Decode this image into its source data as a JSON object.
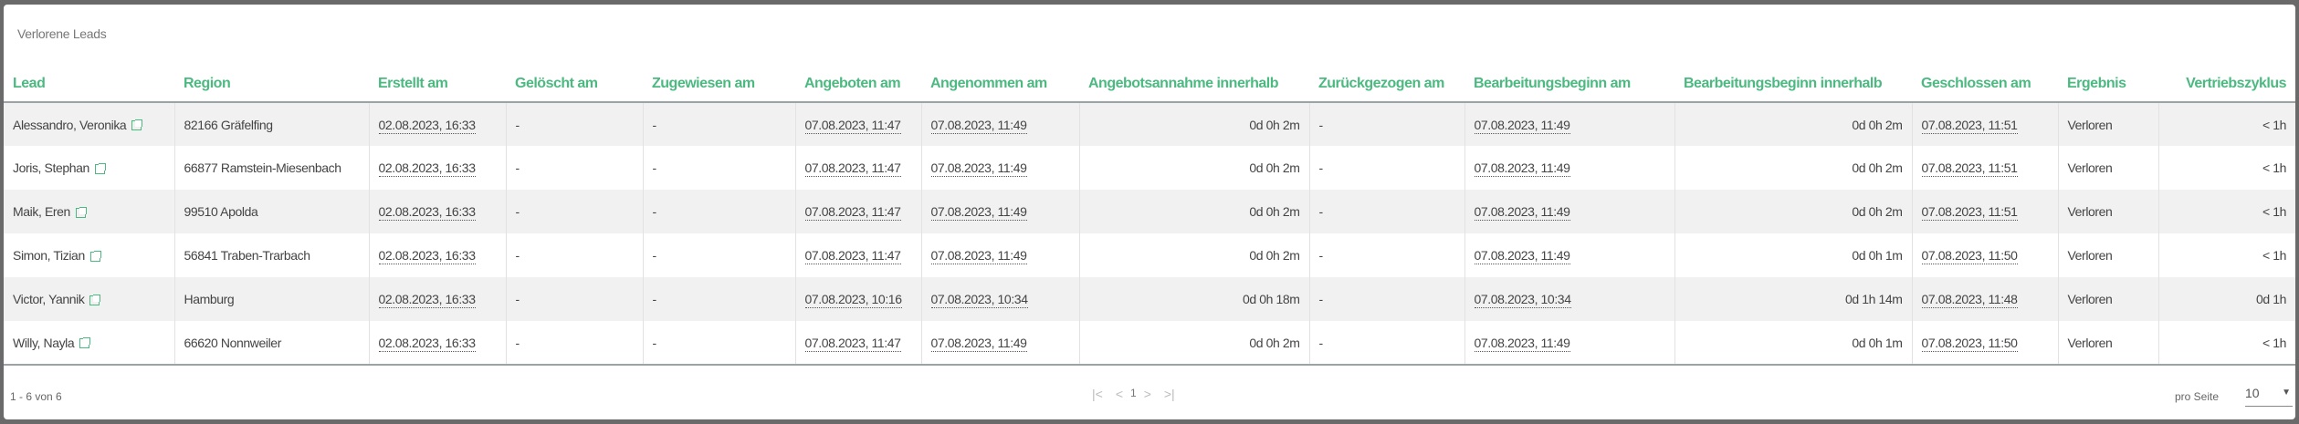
{
  "title": "Verlorene Leads",
  "columns": [
    "Lead",
    "Region",
    "Erstellt am",
    "Gelöscht am",
    "Zugewiesen am",
    "Angeboten am",
    "Angenommen am",
    "Angebotsannahme innerhalb",
    "Zurückgezogen am",
    "Bearbeitungsbeginn am",
    "Bearbeitungsbeginn innerhalb",
    "Geschlossen am",
    "Ergebnis",
    "Vertriebszyklus"
  ],
  "rows": [
    [
      "Alessandro, Veronika",
      "82166 Gräfelfing",
      "02.08.2023, 16:33",
      "-",
      "-",
      "07.08.2023, 11:47",
      "07.08.2023, 11:49",
      "0d 0h 2m",
      "-",
      "07.08.2023, 11:49",
      "0d 0h 2m",
      "07.08.2023, 11:51",
      "Verloren",
      "< 1h"
    ],
    [
      "Joris, Stephan",
      "66877 Ramstein-Miesenbach",
      "02.08.2023, 16:33",
      "-",
      "-",
      "07.08.2023, 11:47",
      "07.08.2023, 11:49",
      "0d 0h 2m",
      "-",
      "07.08.2023, 11:49",
      "0d 0h 2m",
      "07.08.2023, 11:51",
      "Verloren",
      "< 1h"
    ],
    [
      "Maik, Eren",
      "99510 Apolda",
      "02.08.2023, 16:33",
      "-",
      "-",
      "07.08.2023, 11:47",
      "07.08.2023, 11:49",
      "0d 0h 2m",
      "-",
      "07.08.2023, 11:49",
      "0d 0h 2m",
      "07.08.2023, 11:51",
      "Verloren",
      "< 1h"
    ],
    [
      "Simon, Tizian",
      "56841 Traben-Trarbach",
      "02.08.2023, 16:33",
      "-",
      "-",
      "07.08.2023, 11:47",
      "07.08.2023, 11:49",
      "0d 0h 2m",
      "-",
      "07.08.2023, 11:49",
      "0d 0h 1m",
      "07.08.2023, 11:50",
      "Verloren",
      "< 1h"
    ],
    [
      "Victor, Yannik",
      "Hamburg",
      "02.08.2023, 16:33",
      "-",
      "-",
      "07.08.2023, 10:16",
      "07.08.2023, 10:34",
      "0d 0h 18m",
      "-",
      "07.08.2023, 10:34",
      "0d 1h 14m",
      "07.08.2023, 11:48",
      "Verloren",
      "0d 1h"
    ],
    [
      "Willy, Nayla",
      "66620 Nonnweiler",
      "02.08.2023, 16:33",
      "-",
      "-",
      "07.08.2023, 11:47",
      "07.08.2023, 11:49",
      "0d 0h 2m",
      "-",
      "07.08.2023, 11:49",
      "0d 0h 1m",
      "07.08.2023, 11:50",
      "Verloren",
      "< 1h"
    ]
  ],
  "footer": {
    "range": "1 - 6 von 6",
    "page": "1",
    "first": "|<",
    "prev": "<",
    "next": ">",
    "last": ">|",
    "per_page_label": "pro Seite",
    "per_page": "10"
  },
  "colors": {
    "accent": "#4cb981"
  }
}
